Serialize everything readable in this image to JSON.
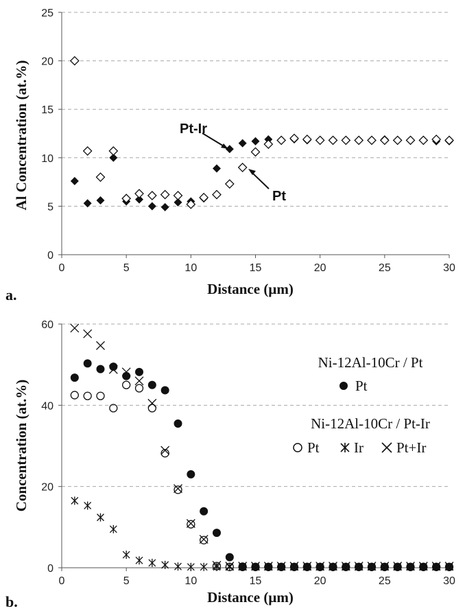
{
  "chart_data": [
    {
      "type": "scatter",
      "panel_label": "a.",
      "xlabel": "Distance (µm)",
      "ylabel": "Al Concentration (at.%)",
      "xlim": [
        0,
        30
      ],
      "ylim": [
        0,
        25
      ],
      "xticks": [
        0,
        5,
        10,
        15,
        20,
        25,
        30
      ],
      "yticks": [
        0,
        5,
        10,
        15,
        20,
        25
      ],
      "grid": "horizontal dashed",
      "series": [
        {
          "name": "Pt-Ir",
          "marker": "filled-diamond",
          "x": [
            1,
            2,
            3,
            4,
            5,
            6,
            7,
            8,
            9,
            10,
            11,
            12,
            13,
            14,
            15,
            16,
            17,
            18,
            19,
            20,
            21,
            22,
            23,
            24,
            25,
            26,
            27,
            28,
            29,
            30
          ],
          "y": [
            7.6,
            5.3,
            5.6,
            10.0,
            5.5,
            5.7,
            5.0,
            4.9,
            5.4,
            5.5,
            5.8,
            8.9,
            10.9,
            11.5,
            11.7,
            11.9,
            11.8,
            11.9,
            11.8,
            11.8,
            11.8,
            11.8,
            11.8,
            11.8,
            11.9,
            11.8,
            11.8,
            11.8,
            11.7,
            11.7
          ]
        },
        {
          "name": "Pt",
          "marker": "open-diamond",
          "x": [
            1,
            2,
            3,
            4,
            5,
            6,
            7,
            8,
            9,
            10,
            11,
            12,
            13,
            14,
            15,
            16,
            17,
            18,
            19,
            20,
            21,
            22,
            23,
            24,
            25,
            26,
            27,
            28,
            29,
            30
          ],
          "y": [
            20.0,
            10.7,
            8.0,
            10.7,
            5.8,
            6.3,
            6.1,
            6.2,
            6.1,
            5.2,
            5.9,
            6.2,
            7.3,
            9.0,
            10.6,
            11.4,
            11.8,
            12.0,
            11.9,
            11.8,
            11.8,
            11.8,
            11.8,
            11.8,
            11.8,
            11.8,
            11.8,
            11.8,
            11.9,
            11.8
          ]
        }
      ],
      "annotations": [
        "Pt-Ir",
        "Pt"
      ]
    },
    {
      "type": "scatter",
      "panel_label": "b.",
      "xlabel": "Distance (µm)",
      "ylabel": "Concentration (at.%)",
      "xlim": [
        0,
        30
      ],
      "ylim": [
        0,
        60
      ],
      "xticks": [
        0,
        5,
        10,
        15,
        20,
        25,
        30
      ],
      "yticks": [
        0,
        20,
        40,
        60
      ],
      "grid": "horizontal dashed",
      "legend": {
        "group1_title": "Ni-12Al-10Cr / Pt",
        "group1_item": "Pt",
        "group2_title": "Ni-12Al-10Cr / Pt-Ir",
        "group2_items": [
          "Pt",
          "Ir",
          "Pt+Ir"
        ]
      },
      "series": [
        {
          "name": "Pt",
          "group": "Ni-12Al-10Cr / Pt",
          "marker": "filled-circle",
          "x": [
            1,
            2,
            3,
            4,
            5,
            6,
            7,
            8,
            9,
            10,
            11,
            12,
            13,
            14,
            15,
            16,
            17,
            18,
            19,
            20,
            21,
            22,
            23,
            24,
            25,
            26,
            27,
            28,
            29,
            30
          ],
          "y": [
            46.8,
            50.3,
            48.9,
            49.5,
            47.2,
            48.2,
            45.0,
            43.7,
            35.5,
            23.0,
            13.9,
            8.6,
            2.6,
            0.3,
            0.2,
            0.2,
            0.2,
            0.2,
            0.2,
            0.2,
            0.2,
            0.2,
            0.2,
            0.2,
            0.2,
            0.2,
            0.2,
            0.2,
            0.2,
            0.2
          ]
        },
        {
          "name": "Pt",
          "group": "Ni-12Al-10Cr / Pt-Ir",
          "marker": "open-circle",
          "x": [
            1,
            2,
            3,
            4,
            5,
            6,
            7,
            8,
            9,
            10,
            11,
            12,
            13,
            14,
            15,
            16,
            17,
            18,
            19,
            20,
            21,
            22,
            23,
            24,
            25,
            26,
            27,
            28,
            29,
            30
          ],
          "y": [
            42.5,
            42.3,
            42.3,
            39.3,
            45.0,
            44.2,
            39.3,
            28.2,
            19.2,
            10.7,
            6.8,
            0.4,
            0.2,
            0.2,
            0.2,
            0.2,
            0.2,
            0.2,
            0.2,
            0.2,
            0.2,
            0.2,
            0.2,
            0.2,
            0.2,
            0.2,
            0.2,
            0.2,
            0.2,
            0.2
          ]
        },
        {
          "name": "Ir",
          "group": "Ni-12Al-10Cr / Pt-Ir",
          "marker": "asterisk",
          "x": [
            1,
            2,
            3,
            4,
            5,
            6,
            7,
            8,
            9,
            10,
            11,
            12,
            13,
            14,
            15,
            16,
            17,
            18,
            19,
            20,
            21,
            22,
            23,
            24,
            25,
            26,
            27,
            28,
            29,
            30
          ],
          "y": [
            16.5,
            15.3,
            12.4,
            9.5,
            3.2,
            1.8,
            1.2,
            0.7,
            0.3,
            0.2,
            0.2,
            0.2,
            0.2,
            0.2,
            0.2,
            0.2,
            0.2,
            0.2,
            0.2,
            0.2,
            0.2,
            0.2,
            0.2,
            0.2,
            0.2,
            0.2,
            0.2,
            0.2,
            0.2,
            0.2
          ]
        },
        {
          "name": "Pt+Ir",
          "group": "Ni-12Al-10Cr / Pt-Ir",
          "marker": "x",
          "x": [
            1,
            2,
            3,
            4,
            5,
            6,
            7,
            8,
            9,
            10,
            11,
            12,
            13,
            14,
            15,
            16,
            17,
            18,
            19,
            20,
            21,
            22,
            23,
            24,
            25,
            26,
            27,
            28,
            29,
            30
          ],
          "y": [
            59.0,
            57.6,
            54.7,
            48.8,
            48.2,
            46.0,
            40.5,
            28.9,
            19.5,
            10.9,
            7.0,
            0.6,
            0.4,
            0.4,
            0.4,
            0.4,
            0.4,
            0.4,
            0.4,
            0.4,
            0.4,
            0.4,
            0.4,
            0.4,
            0.4,
            0.4,
            0.4,
            0.4,
            0.4,
            0.4
          ]
        }
      ]
    }
  ]
}
